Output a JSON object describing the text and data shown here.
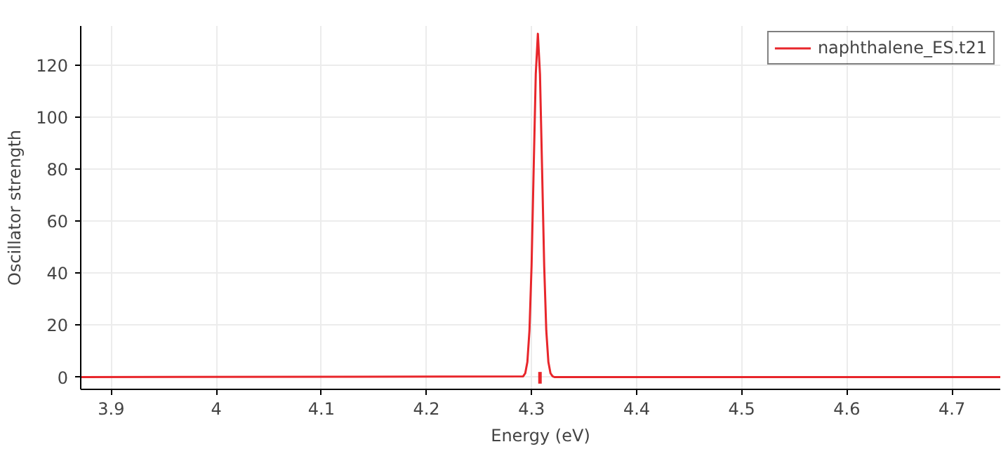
{
  "chart_data": {
    "type": "line",
    "xlabel": "Energy (eV)",
    "ylabel": "Oscillator strength",
    "xlim": [
      3.871,
      4.746
    ],
    "ylim": [
      -4.7,
      135
    ],
    "xticks": [
      3.9,
      4,
      4.1,
      4.2,
      4.3,
      4.4,
      4.5,
      4.6,
      4.7
    ],
    "yticks": [
      0,
      20,
      40,
      60,
      80,
      100,
      120
    ],
    "grid": true,
    "legend": "top right",
    "series": [
      {
        "name": "naphthalene_ES.t21",
        "color": "#e8262b",
        "x": [
          3.871,
          4.292,
          4.294,
          4.296,
          4.298,
          4.3,
          4.302,
          4.304,
          4.306,
          4.308,
          4.31,
          4.312,
          4.314,
          4.316,
          4.318,
          4.32,
          4.322,
          4.324,
          4.746
        ],
        "values": [
          0,
          0.3,
          1.5,
          5.8,
          17.9,
          42.9,
          80.1,
          116.5,
          132,
          116.5,
          80.1,
          42.9,
          17.9,
          5.8,
          1.5,
          0.3,
          0,
          0,
          0
        ]
      },
      {
        "color": "#e8262b",
        "x": [
          4.308,
          4.308
        ],
        "values": [
          -2.5,
          2
        ]
      }
    ]
  }
}
